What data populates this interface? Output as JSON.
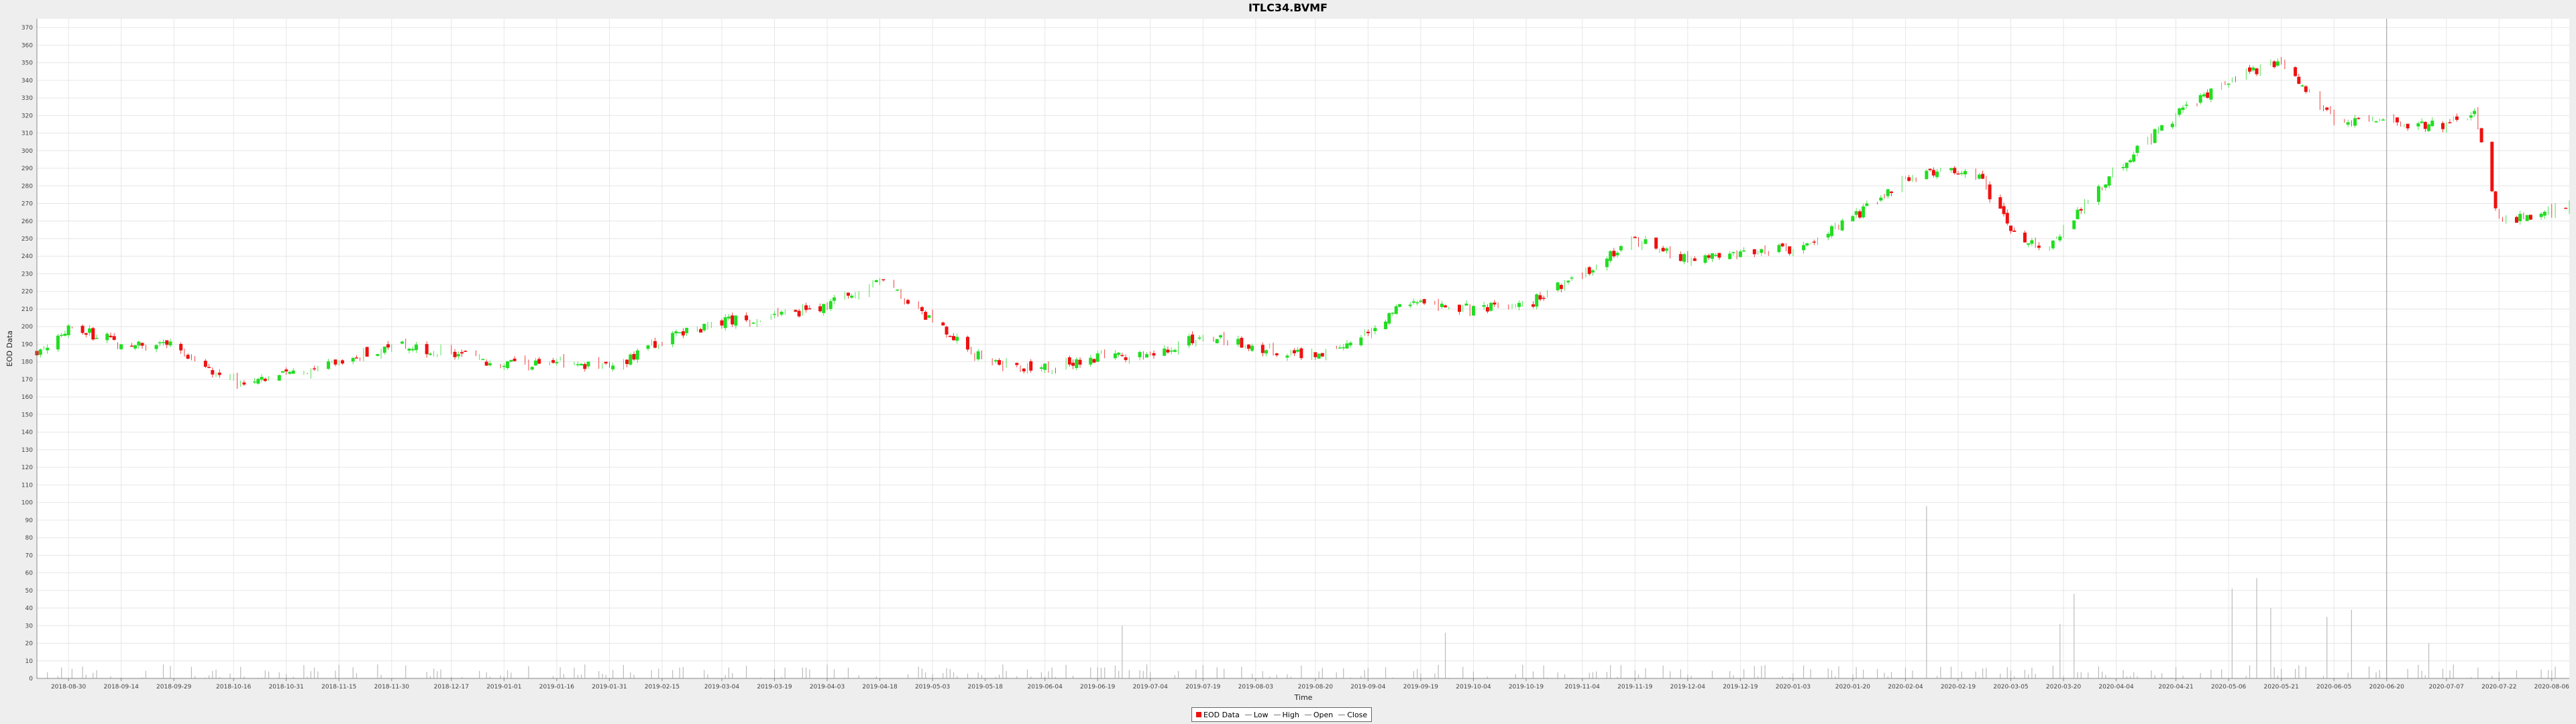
{
  "chart_data": {
    "type": "candlestick",
    "title": "ITLC34.BVMF",
    "xlabel": "Time",
    "ylabel": "EOD Data",
    "ylim": [
      0,
      375
    ],
    "y_ticks": [
      0,
      10,
      20,
      30,
      40,
      50,
      60,
      70,
      80,
      90,
      100,
      110,
      120,
      130,
      140,
      150,
      160,
      170,
      180,
      190,
      200,
      210,
      220,
      230,
      240,
      250,
      260,
      270,
      280,
      290,
      300,
      310,
      320,
      330,
      340,
      350,
      360,
      370
    ],
    "x_ticks": [
      "2018-08-30",
      "2018-09-14",
      "2018-09-29",
      "2018-10-16",
      "2018-10-31",
      "2018-11-15",
      "2018-11-30",
      "2018-12-17",
      "2019-01-01",
      "2019-01-16",
      "2019-01-31",
      "2019-02-15",
      "2019-03-04",
      "2019-03-19",
      "2019-04-03",
      "2019-04-18",
      "2019-05-03",
      "2019-05-18",
      "2019-06-04",
      "2019-06-19",
      "2019-07-04",
      "2019-07-19",
      "2019-08-03",
      "2019-08-20",
      "2019-09-04",
      "2019-09-19",
      "2019-10-04",
      "2019-10-19",
      "2019-11-04",
      "2019-11-19",
      "2019-12-04",
      "2019-12-19",
      "2020-01-03",
      "2020-01-20",
      "2020-02-04",
      "2020-02-19",
      "2020-03-05",
      "2020-03-20",
      "2020-04-04",
      "2020-04-21",
      "2020-05-06",
      "2020-05-21",
      "2020-06-05",
      "2020-06-20",
      "2020-07-07",
      "2020-07-22",
      "2020-08-06"
    ],
    "x_range": [
      "2018-08-21",
      "2020-08-11"
    ],
    "crosshair_date": "2020-06-20",
    "grid": true,
    "legend_position": "bottom-center",
    "legend": [
      "EOD Data",
      "Low",
      "High",
      "Open",
      "Close"
    ],
    "colors": {
      "up": "#22dd22",
      "down": "#ee1111",
      "volume": "#bbbbbb",
      "grid": "#e6e6e6",
      "plot_bg": "#ffffff",
      "crosshair": "#999999"
    },
    "anchors": [
      [
        "2018-08-21",
        186
      ],
      [
        "2018-08-30",
        200
      ],
      [
        "2018-09-10",
        193
      ],
      [
        "2018-09-14",
        190
      ],
      [
        "2018-09-29",
        190
      ],
      [
        "2018-10-10",
        175
      ],
      [
        "2018-10-20",
        166
      ],
      [
        "2018-10-31",
        173
      ],
      [
        "2018-11-15",
        180
      ],
      [
        "2018-11-30",
        190
      ],
      [
        "2018-12-17",
        185
      ],
      [
        "2018-12-30",
        178
      ],
      [
        "2019-01-16",
        180
      ],
      [
        "2019-01-31",
        176
      ],
      [
        "2019-02-15",
        192
      ],
      [
        "2019-03-04",
        203
      ],
      [
        "2019-03-19",
        206
      ],
      [
        "2019-04-03",
        212
      ],
      [
        "2019-04-18",
        227
      ],
      [
        "2019-05-03",
        203
      ],
      [
        "2019-05-18",
        180
      ],
      [
        "2019-06-04",
        176
      ],
      [
        "2019-06-19",
        183
      ],
      [
        "2019-07-04",
        184
      ],
      [
        "2019-07-19",
        195
      ],
      [
        "2019-08-03",
        188
      ],
      [
        "2019-08-20",
        184
      ],
      [
        "2019-09-04",
        197
      ],
      [
        "2019-09-15",
        214
      ],
      [
        "2019-09-25",
        211
      ],
      [
        "2019-10-04",
        210
      ],
      [
        "2019-10-19",
        212
      ],
      [
        "2019-11-04",
        230
      ],
      [
        "2019-11-19",
        249
      ],
      [
        "2019-12-04",
        238
      ],
      [
        "2019-12-19",
        242
      ],
      [
        "2020-01-03",
        244
      ],
      [
        "2020-01-20",
        262
      ],
      [
        "2020-02-04",
        284
      ],
      [
        "2020-02-15",
        290
      ],
      [
        "2020-02-25",
        285
      ],
      [
        "2020-03-05",
        255
      ],
      [
        "2020-03-15",
        242
      ],
      [
        "2020-03-25",
        268
      ],
      [
        "2020-04-04",
        290
      ],
      [
        "2020-04-21",
        320
      ],
      [
        "2020-05-06",
        341
      ],
      [
        "2020-05-21",
        351
      ],
      [
        "2020-06-05",
        318
      ],
      [
        "2020-06-20",
        315
      ],
      [
        "2020-07-07",
        314
      ],
      [
        "2020-07-15",
        322
      ],
      [
        "2020-07-22",
        260
      ],
      [
        "2020-08-06",
        265
      ],
      [
        "2020-08-10",
        268
      ]
    ],
    "volume_spikes": [
      [
        "2019-06-26",
        30
      ],
      [
        "2019-09-26",
        26
      ],
      [
        "2020-02-09",
        100
      ],
      [
        "2020-02-10",
        98
      ],
      [
        "2020-03-19",
        31
      ],
      [
        "2020-03-23",
        48
      ],
      [
        "2020-05-07",
        51
      ],
      [
        "2020-05-14",
        57
      ],
      [
        "2020-05-18",
        40
      ],
      [
        "2020-06-03",
        35
      ],
      [
        "2020-06-10",
        39
      ],
      [
        "2020-07-02",
        20
      ]
    ]
  }
}
